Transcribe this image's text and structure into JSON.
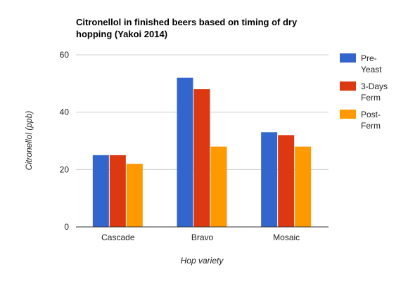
{
  "chart_data": {
    "type": "bar",
    "title_lines": [
      "Citronellol in finished beers based on timing of dry",
      "hopping (Yakoi 2014)"
    ],
    "xlabel": "Hop variety",
    "ylabel": "Citronellol (ppb)",
    "categories": [
      "Cascade",
      "Bravo",
      "Mosaic"
    ],
    "ylim": [
      0,
      60
    ],
    "yticks": [
      0,
      20,
      40,
      60
    ],
    "grid": true,
    "legend_position": "right",
    "series": [
      {
        "name_lines": [
          "Pre-",
          "Yeast"
        ],
        "color": "#3366cc",
        "values": [
          25,
          52,
          33
        ]
      },
      {
        "name_lines": [
          "3-Days",
          "Ferm"
        ],
        "color": "#dc3912",
        "values": [
          25,
          48,
          32
        ]
      },
      {
        "name_lines": [
          "Post-",
          "Ferm"
        ],
        "color": "#ff9900",
        "values": [
          22,
          28,
          28
        ]
      }
    ]
  }
}
